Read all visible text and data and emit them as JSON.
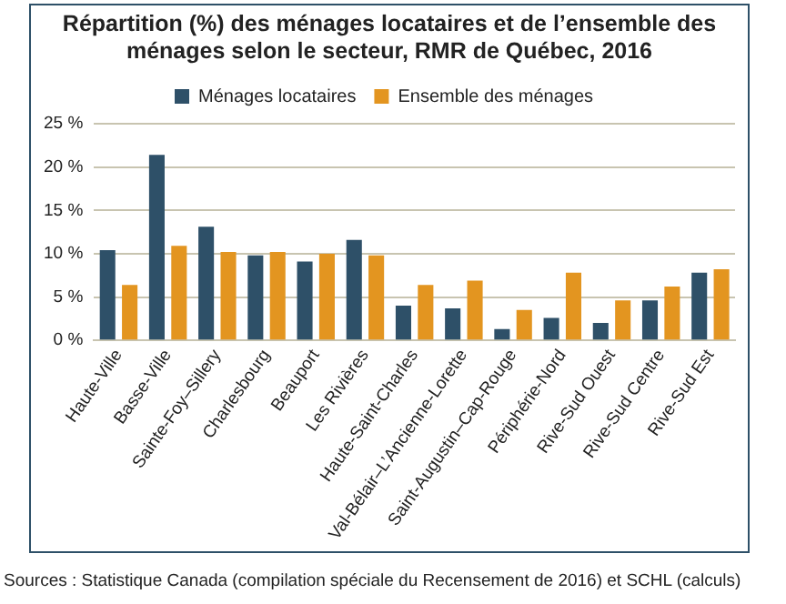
{
  "chart_data": {
    "type": "bar",
    "title": "Répartition (%) des ménages locataires et de l’ensemble des ménages selon le secteur, RMR de Québec, 2016",
    "categories": [
      "Haute-Ville",
      "Basse-Ville",
      "Sainte-Foy–Sillery",
      "Charlesbourg",
      "Beauport",
      "Les Rivières",
      "Haute-Saint-Charles",
      "Val-Bélair–L’Ancienne-Lorette",
      "Saint-Augustin–Cap-Rouge",
      "Périphérie-Nord",
      "Rive-Sud Ouest",
      "Rive-Sud Centre",
      "Rive-Sud Est"
    ],
    "series": [
      {
        "name": "Ménages locataires",
        "color": "#2e5068",
        "values": [
          10.4,
          21.4,
          13.1,
          9.8,
          9.1,
          11.6,
          4.0,
          3.7,
          1.3,
          2.6,
          2.0,
          4.6,
          7.8
        ]
      },
      {
        "name": "Ensemble des ménages",
        "color": "#e39520",
        "values": [
          6.4,
          10.9,
          10.2,
          10.2,
          10.0,
          9.8,
          6.4,
          6.9,
          3.5,
          7.8,
          4.6,
          6.2,
          8.2
        ]
      }
    ],
    "ylim": [
      0,
      25
    ],
    "yticks": [
      {
        "value": 0,
        "label": "0 %"
      },
      {
        "value": 5,
        "label": "5 %"
      },
      {
        "value": 10,
        "label": "10 %"
      },
      {
        "value": 15,
        "label": "15 %"
      },
      {
        "value": 20,
        "label": "20 %"
      },
      {
        "value": 25,
        "label": "25 %"
      }
    ],
    "grid": "y",
    "legend": "top",
    "annotations": [
      "Sources : Statistique Canada (compilation spéciale du Recensement de 2016) et SCHL (calculs)"
    ]
  }
}
